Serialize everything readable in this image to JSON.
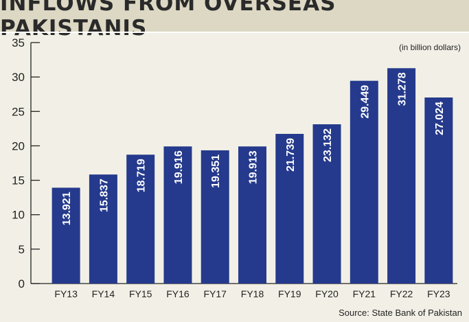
{
  "title": "INFLOWS FROM OVERSEAS PAKISTANIS",
  "unit_note": "(in billion dollars)",
  "source": "Source: State Bank of Pakistan",
  "colors": {
    "bar": "#253a8c",
    "background": "#f2f0e6",
    "title_bg": "#dcd8c4"
  },
  "chart_data": {
    "type": "bar",
    "title": "INFLOWS FROM OVERSEAS PAKISTANIS",
    "xlabel": "",
    "ylabel": "",
    "categories": [
      "FY13",
      "FY14",
      "FY15",
      "FY16",
      "FY17",
      "FY18",
      "FY19",
      "FY20",
      "FY21",
      "FY22",
      "FY23"
    ],
    "values": [
      13.921,
      15.837,
      18.719,
      19.916,
      19.351,
      19.913,
      21.739,
      23.132,
      29.449,
      31.278,
      27.024
    ],
    "value_labels": [
      "13.921",
      "15.837",
      "18.719",
      "19.916",
      "19.351",
      "19.913",
      "21.739",
      "23.132",
      "29.449",
      "31.278",
      "27.024"
    ],
    "ylim": [
      0,
      35
    ],
    "yticks": [
      0,
      5,
      10,
      15,
      20,
      25,
      30,
      35
    ],
    "grid": false,
    "legend": "none"
  }
}
